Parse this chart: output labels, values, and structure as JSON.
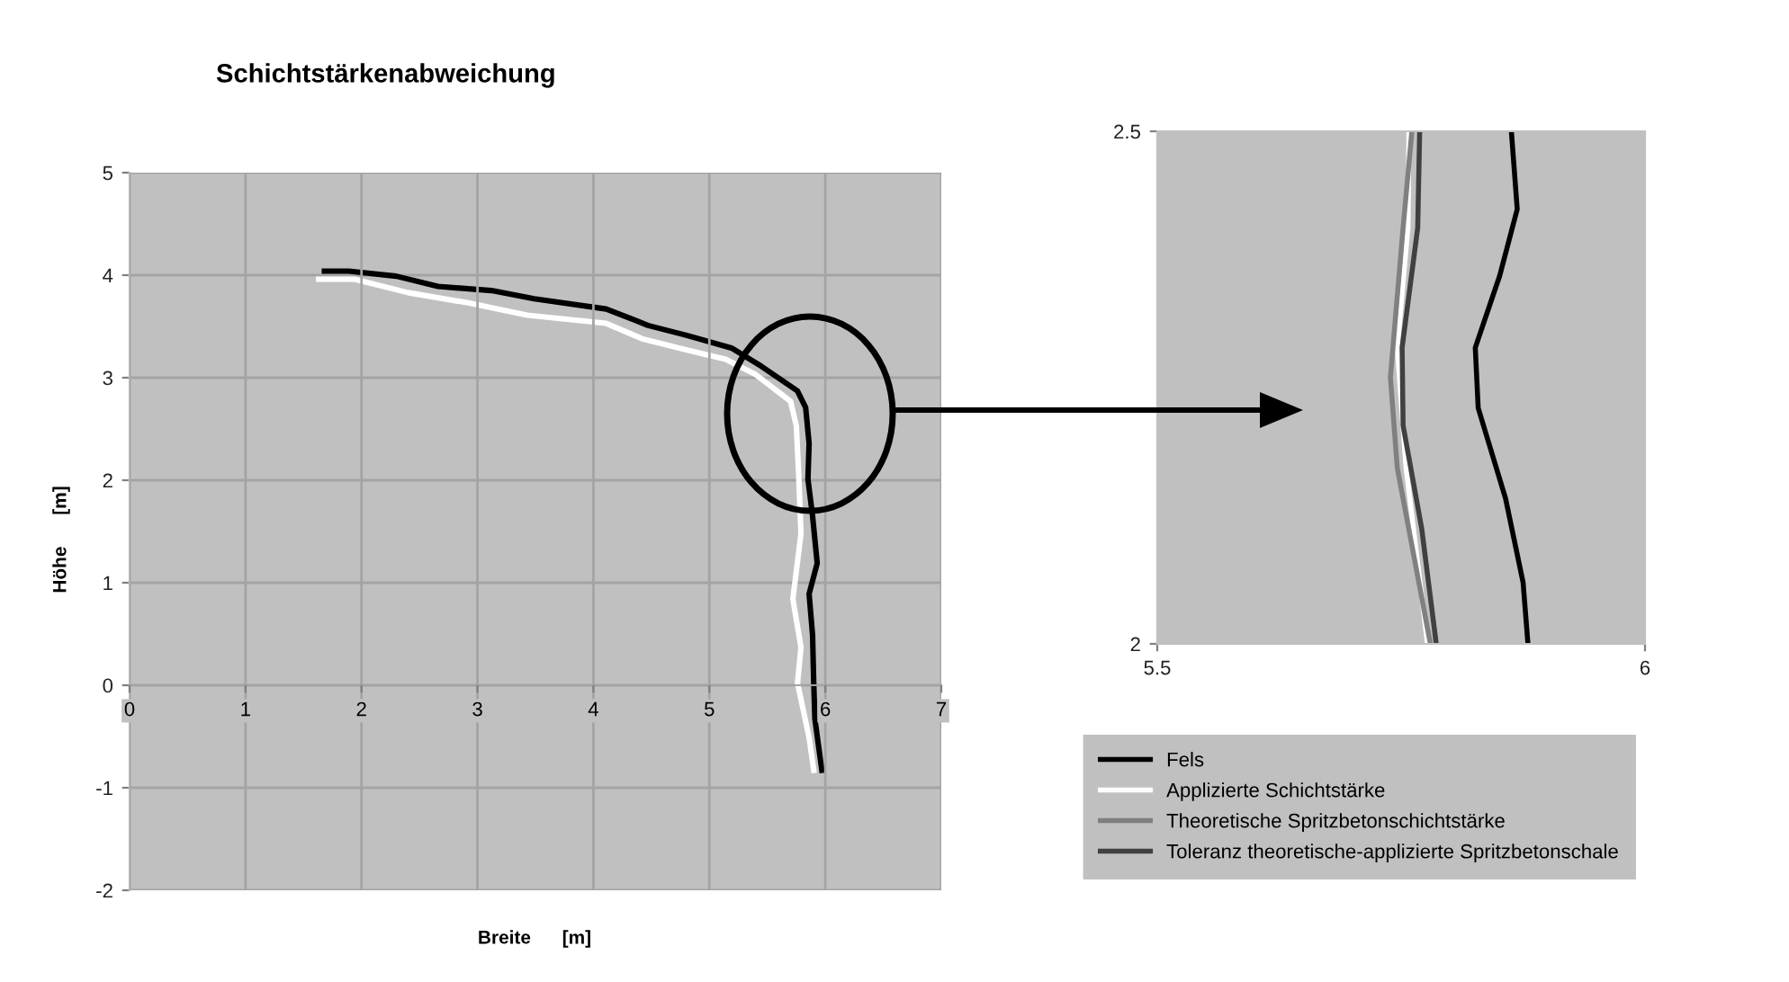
{
  "chart_data": [
    {
      "type": "line",
      "title": "Schichtstärkenabweichung",
      "xlabel": "Breite      [m]",
      "ylabel": "Höhe      [m]",
      "xlim": [
        0,
        7
      ],
      "xticks": [
        0,
        1,
        2,
        3,
        4,
        5,
        6,
        7
      ],
      "ylim": [
        -2,
        5
      ],
      "yticks": [
        -2,
        -1,
        0,
        1,
        2,
        3,
        4,
        5
      ],
      "grid": true,
      "legend": false,
      "series": [
        {
          "color": "#000000",
          "x": [
            1.68,
            1.89,
            2.3,
            2.66,
            3.12,
            3.49,
            4.11,
            4.36,
            4.47,
            4.78,
            5.19,
            5.45,
            5.76,
            5.83,
            5.86,
            5.85,
            5.89,
            5.93,
            5.86,
            5.89,
            5.9,
            5.91,
            5.97
          ],
          "values": [
            4.04,
            4.04,
            3.99,
            3.89,
            3.85,
            3.77,
            3.67,
            3.56,
            3.51,
            3.42,
            3.29,
            3.11,
            2.87,
            2.71,
            2.36,
            2.01,
            1.65,
            1.19,
            0.89,
            0.49,
            0.02,
            -0.33,
            -0.83
          ]
        },
        {
          "color": "#ffffff",
          "x": [
            1.63,
            1.94,
            2.4,
            2.92,
            3.43,
            4.11,
            4.42,
            4.88,
            5.14,
            5.4,
            5.7,
            5.75,
            5.77,
            5.79,
            5.72,
            5.79,
            5.76,
            5.86,
            5.9
          ],
          "values": [
            3.96,
            3.96,
            3.83,
            3.73,
            3.61,
            3.53,
            3.38,
            3.25,
            3.18,
            3.03,
            2.77,
            2.53,
            2.06,
            1.48,
            0.84,
            0.37,
            0.02,
            -0.51,
            -0.83
          ]
        }
      ]
    },
    {
      "type": "line",
      "xlim": [
        5.5,
        6
      ],
      "xticks": [
        5.5,
        6
      ],
      "ylim": [
        2,
        2.5
      ],
      "yticks": [
        2,
        2.5
      ],
      "grid": false,
      "legend": "bottom",
      "series": [
        {
          "name": "Fels",
          "color": "#000000",
          "x": [
            5.863,
            5.869,
            5.851,
            5.826,
            5.829,
            5.857,
            5.875,
            5.88
          ],
          "values": [
            2.5,
            2.424,
            2.359,
            2.289,
            2.23,
            2.142,
            2.06,
            2.0
          ]
        },
        {
          "name": "Applizierte Schichtstärke",
          "color": "#ffffff",
          "x": [
            5.758,
            5.757,
            5.746,
            5.755,
            5.777
          ],
          "values": [
            2.5,
            2.406,
            2.289,
            2.172,
            2.0
          ]
        },
        {
          "name": "Theoretische Spritzbetonschichtstärke",
          "color": "#808080",
          "x": [
            5.761,
            5.752,
            5.739,
            5.746,
            5.78
          ],
          "values": [
            2.5,
            2.406,
            2.26,
            2.172,
            2.0
          ]
        },
        {
          "name": "Toleranz theoretische-applizierte Spritzbetonschale",
          "color": "#404040",
          "x": [
            5.769,
            5.767,
            5.751,
            5.752,
            5.771,
            5.786
          ],
          "values": [
            2.5,
            2.406,
            2.289,
            2.213,
            2.113,
            2.0
          ]
        }
      ]
    }
  ]
}
